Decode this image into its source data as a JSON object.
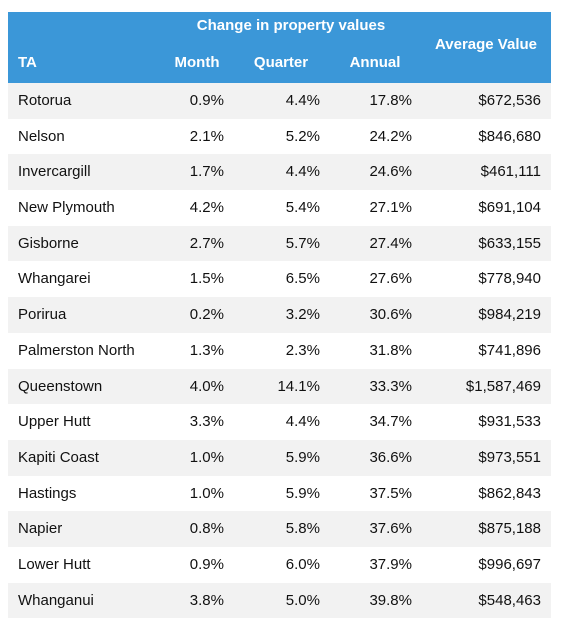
{
  "header": {
    "group_title": "Change in property values",
    "columns": [
      "TA",
      "Month",
      "Quarter",
      "Annual",
      "Average Value"
    ]
  },
  "table": {
    "rows": [
      [
        "Rotorua",
        "0.9%",
        "4.4%",
        "17.8%",
        "$672,536"
      ],
      [
        "Nelson",
        "2.1%",
        "5.2%",
        "24.2%",
        "$846,680"
      ],
      [
        "Invercargill",
        "1.7%",
        "4.4%",
        "24.6%",
        "$461,111"
      ],
      [
        "New Plymouth",
        "4.2%",
        "5.4%",
        "27.1%",
        "$691,104"
      ],
      [
        "Gisborne",
        "2.7%",
        "5.7%",
        "27.4%",
        "$633,155"
      ],
      [
        "Whangarei",
        "1.5%",
        "6.5%",
        "27.6%",
        "$778,940"
      ],
      [
        "Porirua",
        "0.2%",
        "3.2%",
        "30.6%",
        "$984,219"
      ],
      [
        "Palmerston North",
        "1.3%",
        "2.3%",
        "31.8%",
        "$741,896"
      ],
      [
        "Queenstown",
        "4.0%",
        "14.1%",
        "33.3%",
        "$1,587,469"
      ],
      [
        "Upper Hutt",
        "3.3%",
        "4.4%",
        "34.7%",
        "$931,533"
      ],
      [
        "Kapiti Coast",
        "1.0%",
        "5.9%",
        "36.6%",
        "$973,551"
      ],
      [
        "Hastings",
        "1.0%",
        "5.9%",
        "37.5%",
        "$862,843"
      ],
      [
        "Napier",
        "0.8%",
        "5.8%",
        "37.6%",
        "$875,188"
      ],
      [
        "Lower Hutt",
        "0.9%",
        "6.0%",
        "37.9%",
        "$996,697"
      ],
      [
        "Whanganui",
        "3.8%",
        "5.0%",
        "39.8%",
        "$548,463"
      ]
    ]
  }
}
